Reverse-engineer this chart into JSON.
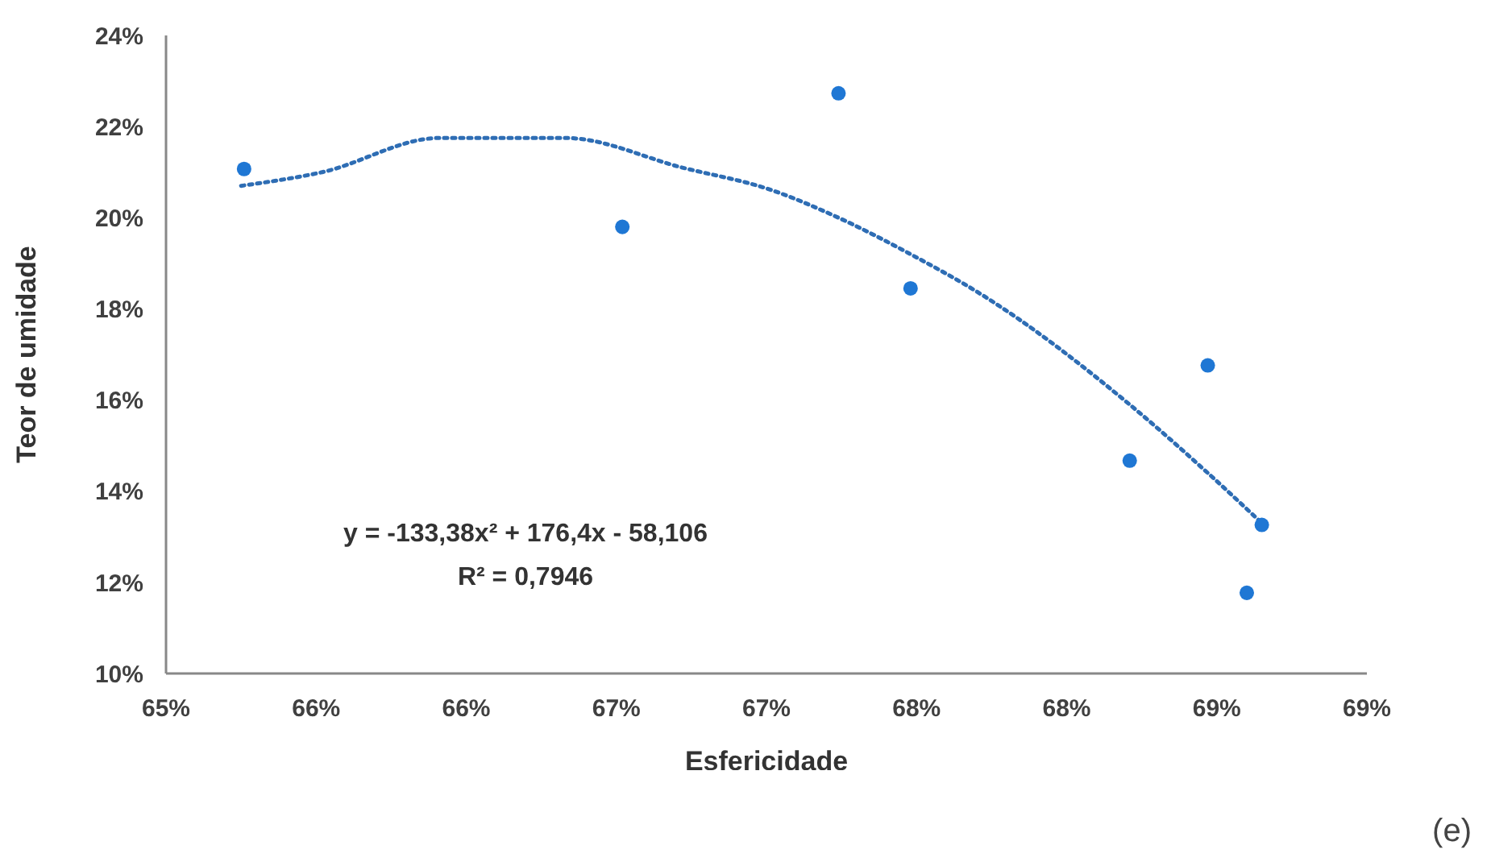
{
  "chart_data": {
    "type": "scatter",
    "xlabel": "Esfericidade",
    "ylabel": "Teor de umidade",
    "xlim": [
      65,
      69
    ],
    "xticks": [
      {
        "value": 65,
        "label": "65%"
      },
      {
        "value": 65.5,
        "label": "66%"
      },
      {
        "value": 66,
        "label": "66%"
      },
      {
        "value": 66.5,
        "label": "67%"
      },
      {
        "value": 67,
        "label": "67%"
      },
      {
        "value": 67.5,
        "label": "68%"
      },
      {
        "value": 68,
        "label": "68%"
      },
      {
        "value": 68.5,
        "label": "69%"
      },
      {
        "value": 69,
        "label": "69%"
      }
    ],
    "ylim": [
      10,
      24
    ],
    "yticks": [
      {
        "value": 10,
        "label": "10%"
      },
      {
        "value": 12,
        "label": "12%"
      },
      {
        "value": 14,
        "label": "14%"
      },
      {
        "value": 16,
        "label": "16%"
      },
      {
        "value": 18,
        "label": "18%"
      },
      {
        "value": 20,
        "label": "20%"
      },
      {
        "value": 22,
        "label": "22%"
      },
      {
        "value": 24,
        "label": "24%"
      }
    ],
    "series": [
      {
        "type": "scatter",
        "color": "#1f77d4",
        "marker": "circle",
        "x": [
          65.26,
          66.52,
          67.24,
          67.48,
          68.21,
          68.47,
          68.6,
          68.65
        ],
        "values": [
          21.07,
          19.8,
          22.73,
          18.45,
          14.67,
          16.76,
          11.77,
          13.26
        ]
      },
      {
        "type": "line",
        "color": "#2e6db4",
        "marker": "none",
        "line_style": "dotted",
        "x": [
          65.25,
          65.52,
          65.91,
          66.33,
          66.72,
          67.02,
          67.24,
          67.48,
          67.72,
          68.21,
          68.47,
          68.65
        ],
        "values": [
          20.7,
          21.0,
          21.75,
          21.75,
          21.1,
          20.6,
          20.0,
          19.2,
          18.3,
          15.9,
          14.4,
          13.3
        ]
      }
    ],
    "annotations": [
      "y = -133,38x² + 176,4x - 58,106",
      "R² = 0,7946",
      "(e)"
    ]
  }
}
